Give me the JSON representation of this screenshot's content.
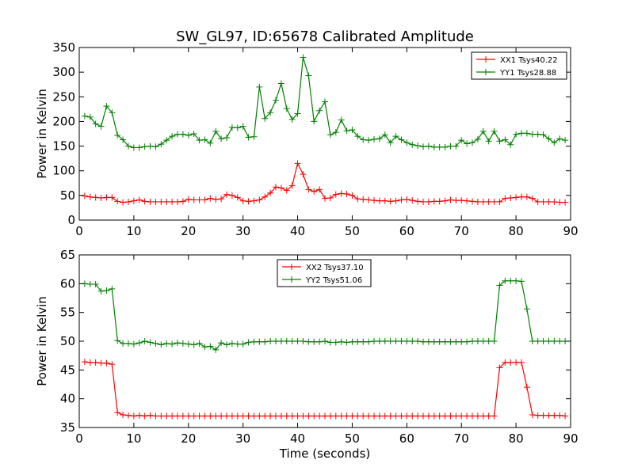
{
  "figure": {
    "title": "SW_GL97, ID:65678 Calibrated Amplitude"
  },
  "chart_data": [
    {
      "type": "line",
      "title": "SW_GL97, ID:65678 Calibrated Amplitude",
      "xlabel": "",
      "ylabel": "Power in Kelvin",
      "xlim": [
        0,
        90
      ],
      "ylim": [
        0,
        350
      ],
      "xticks": [
        0,
        10,
        20,
        30,
        40,
        50,
        60,
        70,
        80,
        90
      ],
      "yticks": [
        0,
        50,
        100,
        150,
        200,
        250,
        300,
        350
      ],
      "grid": false,
      "legend_position": "top-right",
      "x": [
        1,
        2,
        3,
        4,
        5,
        6,
        7,
        8,
        9,
        10,
        11,
        12,
        13,
        14,
        15,
        16,
        17,
        18,
        19,
        20,
        21,
        22,
        23,
        24,
        25,
        26,
        27,
        28,
        29,
        30,
        31,
        32,
        33,
        34,
        35,
        36,
        37,
        38,
        39,
        40,
        41,
        42,
        43,
        44,
        45,
        46,
        47,
        48,
        49,
        50,
        51,
        52,
        53,
        54,
        55,
        56,
        57,
        58,
        59,
        60,
        61,
        62,
        63,
        64,
        65,
        66,
        67,
        68,
        69,
        70,
        71,
        72,
        73,
        74,
        75,
        76,
        77,
        78,
        79,
        80,
        81,
        82,
        83,
        84,
        85,
        86,
        87,
        88,
        89
      ],
      "series": [
        {
          "name": "XX1 Tsys40.22",
          "color": "#ff0000",
          "values": [
            49,
            47,
            46,
            45,
            46,
            46,
            38,
            36,
            37,
            39,
            41,
            38,
            37,
            37,
            37,
            37,
            37,
            37,
            38,
            42,
            41,
            41,
            41,
            44,
            42,
            43,
            52,
            50,
            46,
            39,
            38,
            39,
            41,
            47,
            55,
            67,
            65,
            60,
            70,
            115,
            93,
            62,
            58,
            62,
            44,
            45,
            52,
            54,
            53,
            50,
            43,
            42,
            41,
            40,
            39,
            39,
            38,
            39,
            41,
            42,
            40,
            38,
            37,
            37,
            38,
            38,
            39,
            41,
            40,
            40,
            39,
            38,
            37,
            37,
            37,
            37,
            37,
            44,
            45,
            46,
            47,
            47,
            44,
            37,
            37,
            37,
            37,
            36,
            36
          ]
        },
        {
          "name": "YY1 Tsys28.88",
          "color": "#008000",
          "values": [
            211,
            209,
            195,
            190,
            231,
            218,
            172,
            163,
            150,
            147,
            147,
            149,
            150,
            149,
            154,
            162,
            170,
            174,
            174,
            172,
            175,
            162,
            163,
            156,
            180,
            165,
            167,
            188,
            187,
            190,
            168,
            169,
            270,
            206,
            218,
            243,
            277,
            226,
            204,
            216,
            330,
            293,
            200,
            222,
            240,
            173,
            178,
            203,
            181,
            183,
            170,
            163,
            162,
            164,
            165,
            173,
            157,
            170,
            163,
            157,
            153,
            151,
            149,
            150,
            148,
            148,
            148,
            150,
            150,
            162,
            155,
            157,
            164,
            180,
            160,
            180,
            160,
            163,
            153,
            174,
            176,
            176,
            174,
            174,
            173,
            165,
            157,
            165,
            162
          ]
        }
      ]
    },
    {
      "type": "line",
      "title": "",
      "xlabel": "Time (seconds)",
      "ylabel": "Power in Kelvin",
      "xlim": [
        0,
        90
      ],
      "ylim": [
        35,
        65
      ],
      "xticks": [
        0,
        10,
        20,
        30,
        40,
        50,
        60,
        70,
        80,
        90
      ],
      "yticks": [
        35,
        40,
        45,
        50,
        55,
        60,
        65
      ],
      "grid": false,
      "legend_position": "top-center",
      "x": [
        1,
        2,
        3,
        4,
        5,
        6,
        7,
        8,
        9,
        10,
        11,
        12,
        13,
        14,
        15,
        16,
        17,
        18,
        19,
        20,
        21,
        22,
        23,
        24,
        25,
        26,
        27,
        28,
        29,
        30,
        31,
        32,
        33,
        34,
        35,
        36,
        37,
        38,
        39,
        40,
        41,
        42,
        43,
        44,
        45,
        46,
        47,
        48,
        49,
        50,
        51,
        52,
        53,
        54,
        55,
        56,
        57,
        58,
        59,
        60,
        61,
        62,
        63,
        64,
        65,
        66,
        67,
        68,
        69,
        70,
        71,
        72,
        73,
        74,
        75,
        76,
        77,
        78,
        79,
        80,
        81,
        82,
        83,
        84,
        85,
        86,
        87,
        88,
        89
      ],
      "series": [
        {
          "name": "XX2 Tsys37.10",
          "color": "#ff0000",
          "values": [
            46.4,
            46.3,
            46.3,
            46.2,
            46.2,
            46.0,
            37.6,
            37.2,
            37.1,
            37.0,
            37.1,
            37.0,
            37.1,
            37.0,
            37.0,
            37.0,
            37.0,
            37.0,
            37.0,
            37.0,
            37.0,
            37.0,
            37.0,
            37.0,
            37.0,
            37.0,
            37.0,
            37.0,
            37.0,
            37.0,
            37.0,
            37.0,
            37.0,
            37.0,
            37.0,
            37.0,
            37.0,
            37.0,
            37.0,
            37.0,
            37.0,
            37.0,
            37.0,
            37.0,
            37.0,
            37.0,
            37.0,
            37.0,
            37.0,
            37.0,
            37.0,
            37.0,
            37.0,
            37.0,
            37.0,
            37.0,
            37.0,
            37.0,
            37.0,
            37.0,
            37.0,
            37.0,
            37.0,
            37.0,
            37.0,
            37.0,
            37.0,
            37.0,
            37.0,
            37.0,
            37.0,
            37.0,
            37.0,
            37.0,
            37.0,
            37.0,
            45.4,
            46.3,
            46.3,
            46.3,
            46.3,
            42.0,
            37.2,
            37.1,
            37.1,
            37.1,
            37.1,
            37.1,
            37.0
          ]
        },
        {
          "name": "YY2 Tsys51.06",
          "color": "#008000",
          "values": [
            60.0,
            59.9,
            59.9,
            58.7,
            58.8,
            59.1,
            50.1,
            49.6,
            49.6,
            49.5,
            49.7,
            50.0,
            49.8,
            49.6,
            49.4,
            49.6,
            49.5,
            49.7,
            49.6,
            49.5,
            49.4,
            49.6,
            49.0,
            49.1,
            48.5,
            49.7,
            49.4,
            49.6,
            49.5,
            49.5,
            49.8,
            49.9,
            49.9,
            49.9,
            50.0,
            50.0,
            50.0,
            50.0,
            50.0,
            50.0,
            50.0,
            49.9,
            49.9,
            49.9,
            50.0,
            49.8,
            49.8,
            49.9,
            49.8,
            49.9,
            49.9,
            49.9,
            49.9,
            50.0,
            50.0,
            50.0,
            50.0,
            50.0,
            50.0,
            50.0,
            50.0,
            50.0,
            49.9,
            49.9,
            49.9,
            49.9,
            49.9,
            49.9,
            49.9,
            49.9,
            49.9,
            50.0,
            50.0,
            50.0,
            50.0,
            50.0,
            59.7,
            60.5,
            60.5,
            60.5,
            60.4,
            55.6,
            50.0,
            50.0,
            50.0,
            50.0,
            50.0,
            50.0,
            50.0
          ]
        }
      ]
    }
  ]
}
